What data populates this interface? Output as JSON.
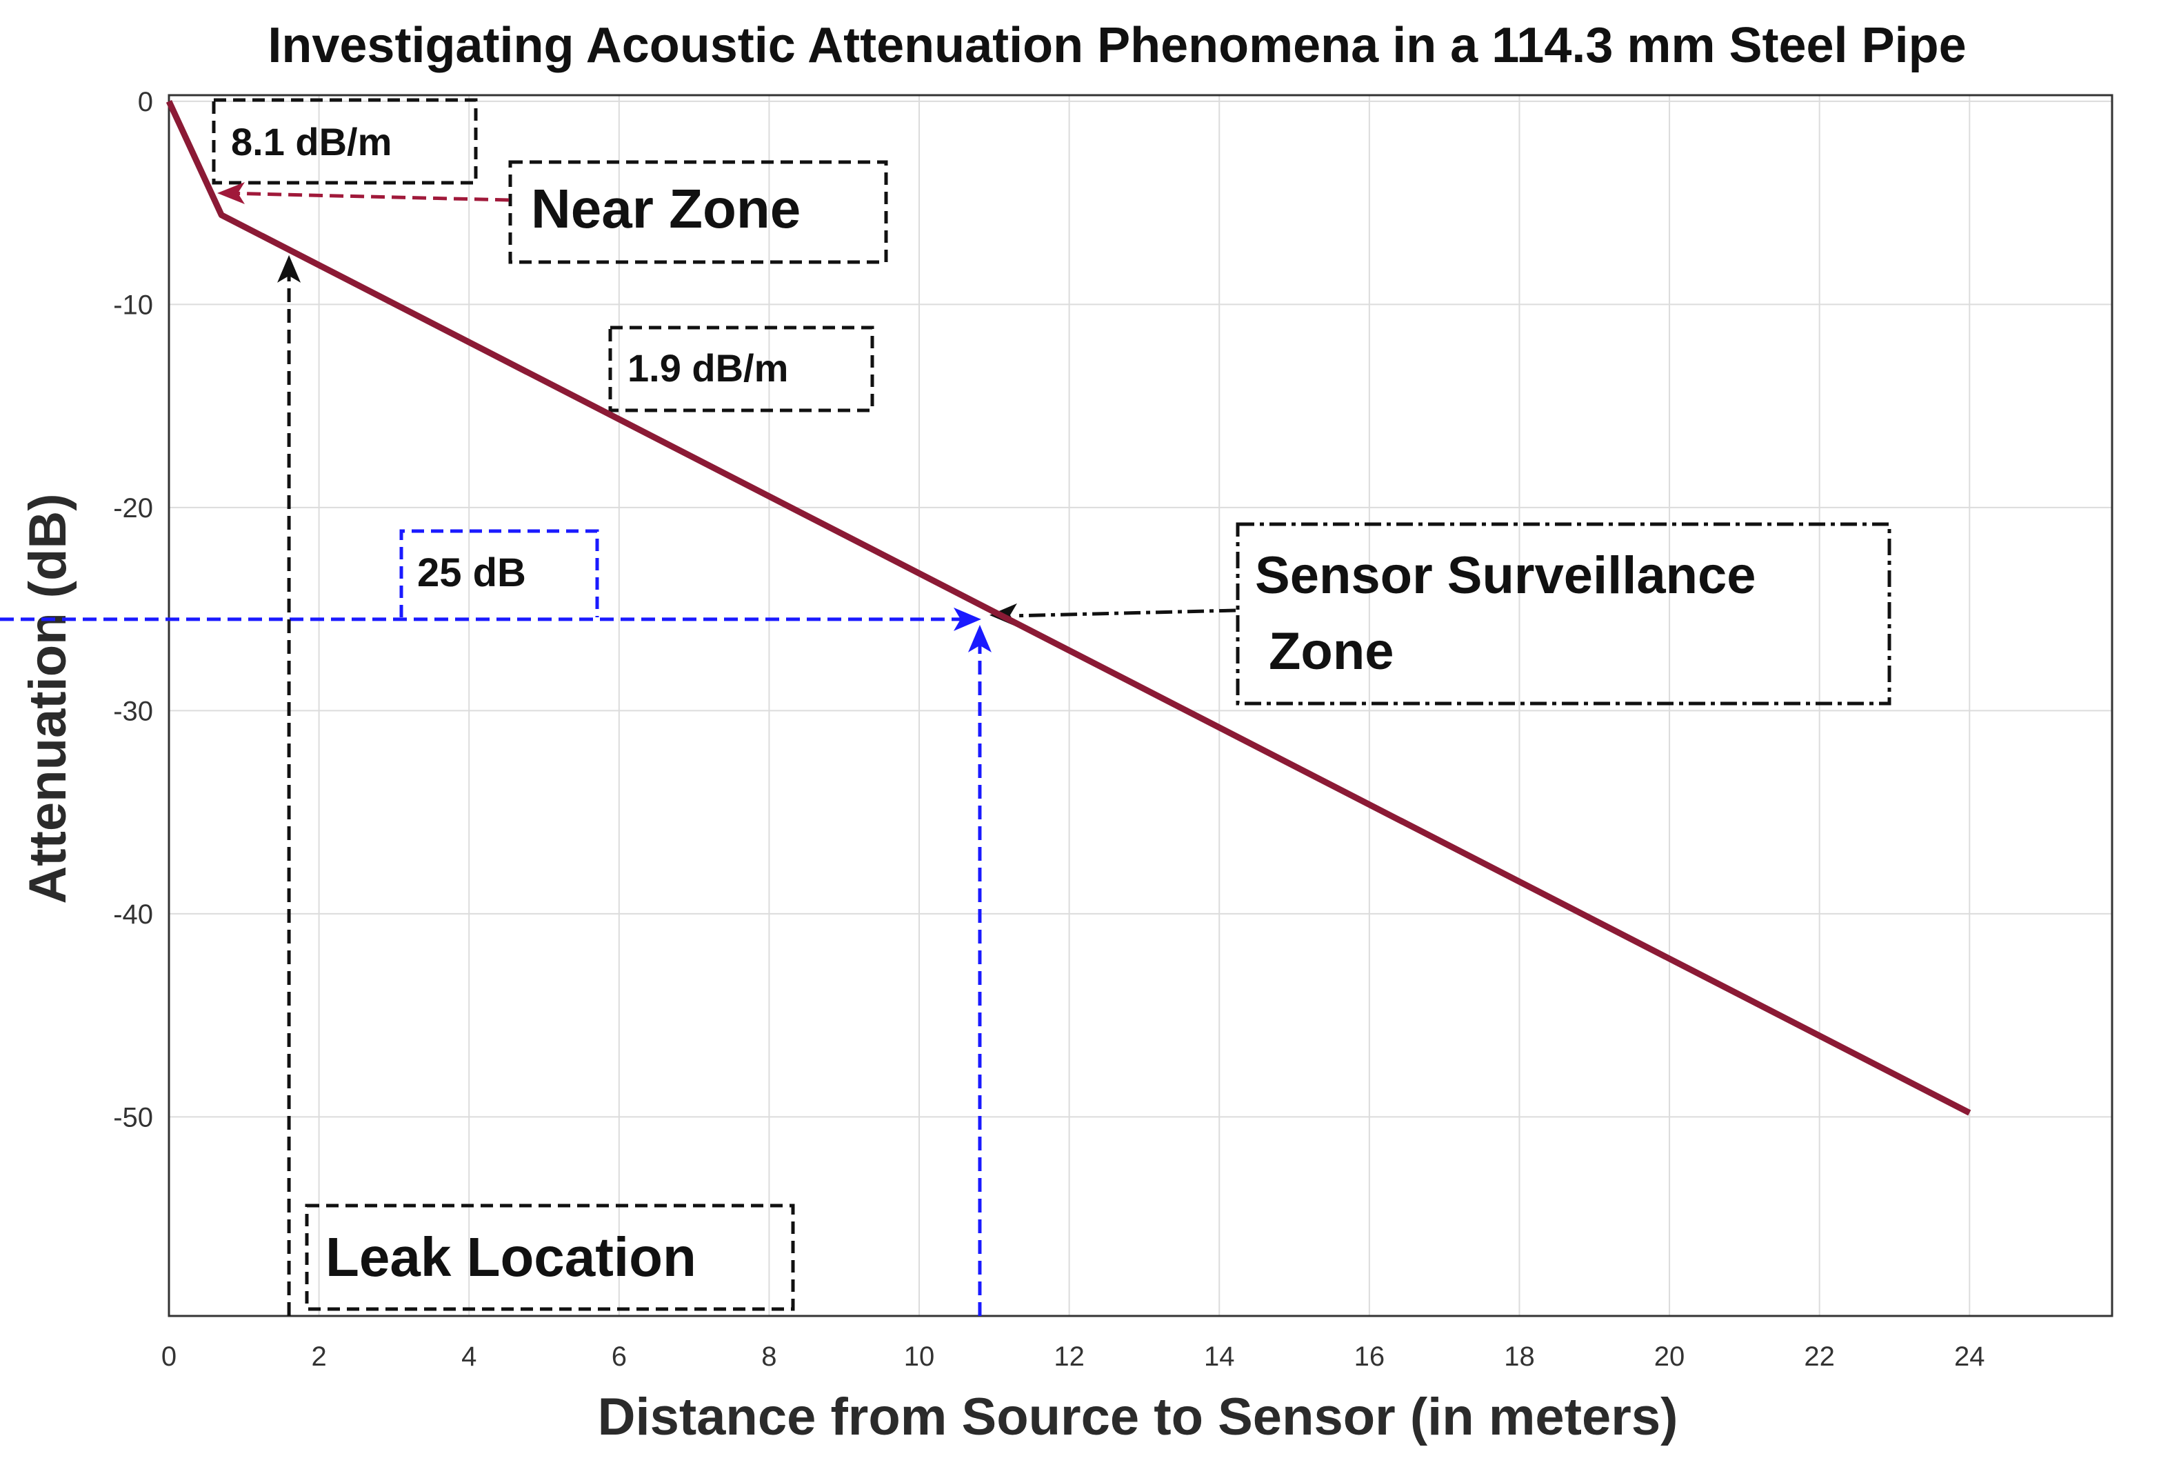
{
  "chart_data": {
    "type": "line",
    "title": "Investigating Acoustic Attenuation Phenomena in a 114.3 mm Steel Pipe",
    "xlabel": "Distance from Source to Sensor (in meters)",
    "ylabel": "Attenuation (dB)",
    "xlim": [
      0,
      25.9
    ],
    "ylim": [
      -59.8,
      0.3
    ],
    "xticks": [
      0,
      2,
      4,
      6,
      8,
      10,
      12,
      14,
      16,
      18,
      20,
      22,
      24
    ],
    "yticks": [
      0,
      -10,
      -20,
      -30,
      -40,
      -50
    ],
    "grid": true,
    "series": [
      {
        "x": [
          0,
          0.7,
          24
        ],
        "y": [
          0,
          -5.6,
          -49.8
        ],
        "color": "#8b1a35"
      }
    ],
    "annotations": {
      "near_slope": {
        "text": "8.1 dB/m"
      },
      "near_zone": {
        "text": "Near Zone",
        "color": "#a0193a"
      },
      "far_slope": {
        "text": "1.9 dB/m"
      },
      "threshold": {
        "text": "25 dB",
        "color": "#1a1aff",
        "y": -25.5,
        "x": 10.9
      },
      "surveillance": {
        "line1": "Sensor Surveillance",
        "line2": "Zone"
      },
      "leak": {
        "text": "Leak Location",
        "x": 1.6,
        "y": -7.3
      }
    }
  }
}
